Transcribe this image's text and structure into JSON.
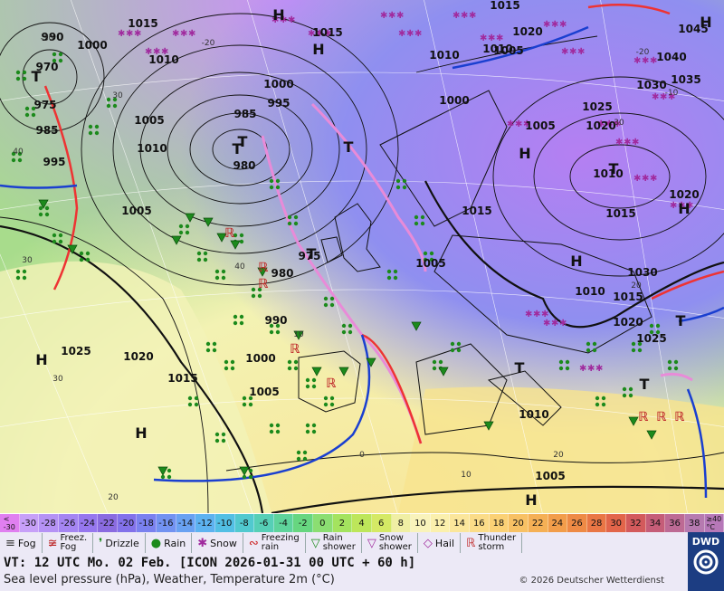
{
  "isobar_labels": [
    "1015",
    "990",
    "1000",
    "1010",
    "970",
    "975",
    "985",
    "995",
    "1005",
    "1010",
    "1000",
    "995",
    "985",
    "980",
    "1005",
    "975",
    "980",
    "990",
    "1000",
    "1005",
    "1025",
    "1020",
    "1015",
    "1010",
    "1005",
    "1000",
    "1005",
    "1015",
    "1010",
    "1010",
    "1015",
    "1020",
    "1030",
    "1020",
    "1025",
    "1010",
    "1015",
    "1020",
    "1025",
    "1030",
    "1035",
    "1040",
    "1045",
    "1005",
    "1015",
    "1010",
    "1015",
    "1020",
    "1005"
  ],
  "pressure_centres": [
    "H",
    "H",
    "H",
    "H",
    "H",
    "H",
    "H",
    "H",
    "H",
    "T",
    "T",
    "T",
    "T",
    "T",
    "T",
    "T",
    "T",
    "T"
  ],
  "isotherm_labels": [
    "-20",
    "-30",
    "30",
    "40",
    "30",
    "30",
    "40",
    "10",
    "0",
    "0",
    "10",
    "20",
    "20",
    "30",
    "20",
    "-10",
    "-20"
  ],
  "scale": {
    "title": "<\n-30",
    "values": [
      "-30",
      "-28",
      "-26",
      "-24",
      "-22",
      "-20",
      "-18",
      "-16",
      "-14",
      "-12",
      "-10",
      "-8",
      "-6",
      "-4",
      "-2",
      "0",
      "2",
      "4",
      "6",
      "8",
      "10",
      "12",
      "14",
      "16",
      "18",
      "20",
      "22",
      "24",
      "26",
      "28",
      "30",
      "32",
      "34",
      "36",
      "38"
    ],
    "last": "≥40\n°C",
    "colors": [
      "#e07ff0",
      "#c7a0f8",
      "#b592f5",
      "#a585f2",
      "#9677ee",
      "#8a6be0",
      "#8271ea",
      "#7a81ef",
      "#7292f1",
      "#69a1f2",
      "#5db2f0",
      "#52bfe4",
      "#51c9cf",
      "#56cfb6",
      "#5ed39b",
      "#67d680",
      "#8bde72",
      "#a4e35f",
      "#bde65a",
      "#d5e965",
      "#f0efa4",
      "#f9f3bb",
      "#fbf0ad",
      "#fbe69b",
      "#fbdc88",
      "#fbd175",
      "#f8c164",
      "#f5b055",
      "#f29d4a",
      "#ee8a45",
      "#e97645",
      "#e2654a",
      "#d35a5c",
      "#c55d78",
      "#bd6a94",
      "#b67ab0"
    ]
  },
  "legend": [
    {
      "icon": "fog-icon",
      "symbol": "≡",
      "label": "Fog"
    },
    {
      "icon": "freezing-fog-icon",
      "symbol": "≆",
      "label": "Freez.\nFog"
    },
    {
      "icon": "drizzle-icon",
      "symbol": "❜",
      "label": "Drizzle"
    },
    {
      "icon": "rain-icon",
      "symbol": "●",
      "label": "Rain"
    },
    {
      "icon": "snow-icon",
      "symbol": "✱",
      "label": "Snow"
    },
    {
      "icon": "freezing-rain-icon",
      "symbol": "∾",
      "label": "Freezing\nrain"
    },
    {
      "icon": "rain-shower-icon",
      "symbol": "▽",
      "label": "Rain\nshower"
    },
    {
      "icon": "snow-shower-icon",
      "symbol": "▽",
      "label": "Snow\nshower"
    },
    {
      "icon": "hail-icon",
      "symbol": "◇",
      "label": "Hail"
    },
    {
      "icon": "thunderstorm-icon",
      "symbol": "ℝ",
      "label": "Thunder\nstorm"
    }
  ],
  "info": {
    "valid_time": "VT: 12 UTC Mo.  02 Feb. [ICON 2026-01-31  00 UTC + 60 h]",
    "description": "Sea level pressure (hPa), Weather, Temperature 2m (°C)",
    "copyright": "© 2026 Deutscher Wetterdienst",
    "logo": "DWD"
  }
}
